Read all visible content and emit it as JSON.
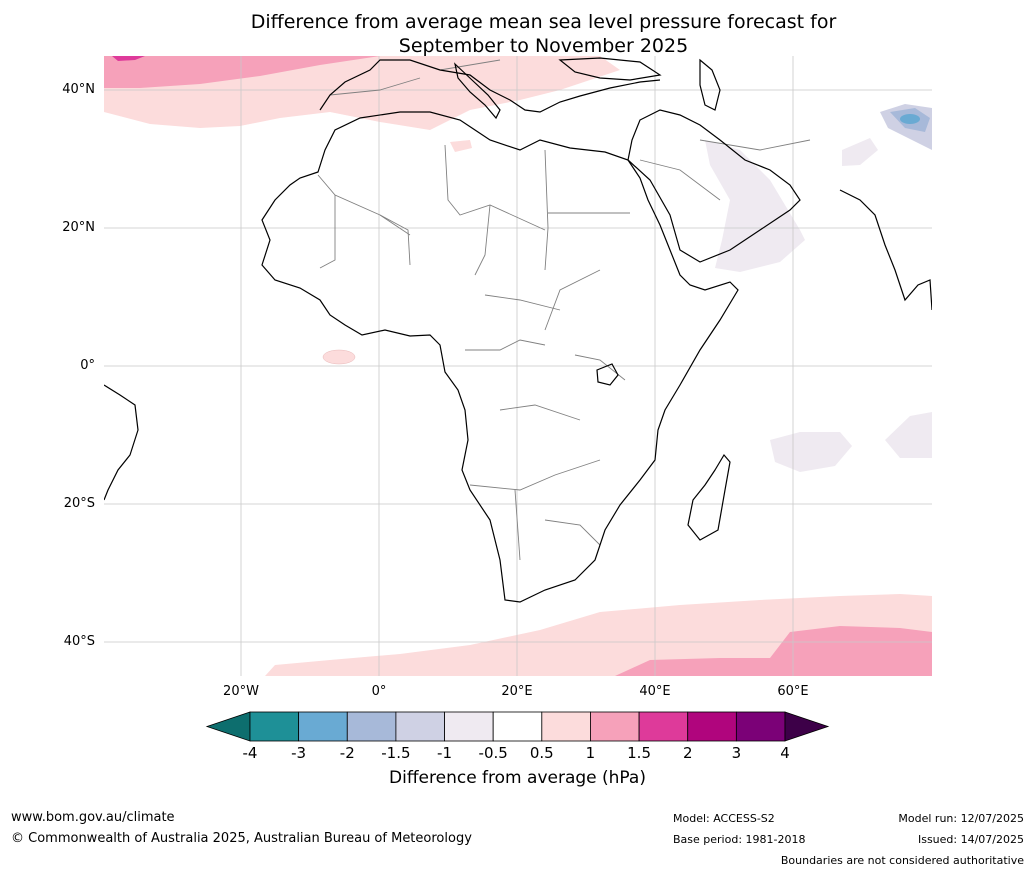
{
  "title_line1": "Difference from average mean sea level pressure forecast for",
  "title_line2": "September to November 2025",
  "lat_labels": [
    "40°N",
    "20°N",
    "0°",
    "20°S",
    "40°S"
  ],
  "lon_labels": [
    "20°W",
    "0°",
    "20°E",
    "40°E",
    "60°E"
  ],
  "colorbar": {
    "ticks": [
      "-4",
      "-3",
      "-2",
      "-1.5",
      "-1",
      "-0.5",
      "0.5",
      "1",
      "1.5",
      "2",
      "3",
      "4"
    ],
    "colors": [
      "#0d6e6e",
      "#1e9097",
      "#69aad3",
      "#a7b9d9",
      "#cfd1e4",
      "#efeaf1",
      "#ffffff",
      "#fcdcdc",
      "#f6a1ba",
      "#de3a9a",
      "#b0057d",
      "#7b0177",
      "#3d0048"
    ],
    "label": "Difference from average (hPa)"
  },
  "footer": {
    "url": "www.bom.gov.au/climate",
    "copyright": "© Commonwealth of Australia 2025, Australian Bureau of Meteorology",
    "model": "Model: ACCESS-S2",
    "base_period": "Base period: 1981-2018",
    "model_run": "Model run: 12/07/2025",
    "issued": "Issued: 14/07/2025",
    "boundaries": "Boundaries are not considered authoritative"
  }
}
